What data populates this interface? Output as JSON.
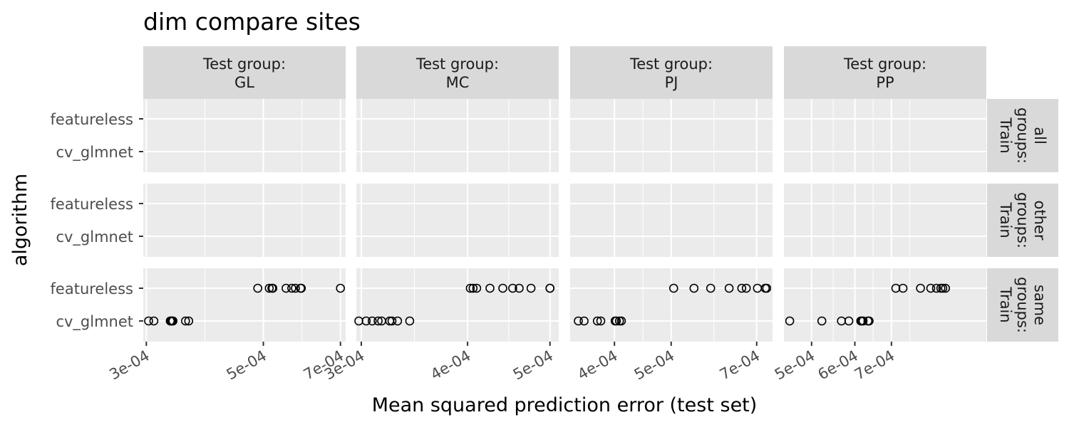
{
  "chart_data": {
    "type": "scatter",
    "title": "dim compare sites",
    "xlabel": "Mean squared prediction error (test set)",
    "ylabel": "algorithm",
    "x_scale": "log10",
    "y_categories": [
      "cv_glmnet",
      "featureless"
    ],
    "col_facets": [
      {
        "label": "Test group:\nGL",
        "xlim": [
          0.000296,
          0.000716
        ],
        "ticks": [
          0.0003,
          0.0005,
          0.0007
        ],
        "tick_labels": [
          "3e-04",
          "5e-04",
          "7e-04"
        ]
      },
      {
        "label": "Test group:\nMC",
        "xlim": [
          0.000296,
          0.000512
        ],
        "ticks": [
          0.0003,
          0.0004,
          0.0005
        ],
        "tick_labels": [
          "3e-04",
          "4e-04",
          "5e-04"
        ]
      },
      {
        "label": "Test group:\nPJ",
        "xlim": [
          0.000336,
          0.000745
        ],
        "ticks": [
          0.0004,
          0.0005,
          0.0007
        ],
        "tick_labels": [
          "4e-04",
          "5e-04",
          "7e-04"
        ]
      },
      {
        "label": "Test group:\nPP",
        "xlim": [
          0.000445,
          0.001044
        ],
        "ticks": [
          0.0005,
          0.0006,
          0.0007
        ],
        "tick_labels": [
          "5e-04",
          "6e-04",
          "7e-04"
        ]
      }
    ],
    "row_facets": [
      {
        "label": "Train\ngroups:\nall"
      },
      {
        "label": "Train\ngroups:\nother"
      },
      {
        "label": "Train\ngroups:\nsame"
      }
    ],
    "points": [
      {
        "col": 0,
        "row": 2,
        "algorithm": "featureless",
        "x": [
          0.000488,
          0.000513,
          0.000519,
          0.000521,
          0.000552,
          0.000566,
          0.000575,
          0.000588,
          0.00059,
          0.0007
        ]
      },
      {
        "col": 0,
        "row": 2,
        "algorithm": "cv_glmnet",
        "x": [
          0.000303,
          0.00031,
          0.000333,
          0.000334,
          0.000335,
          0.000336,
          0.000337,
          0.000356,
          0.000361
        ]
      },
      {
        "col": 1,
        "row": 2,
        "algorithm": "featureless",
        "x": [
          0.000403,
          0.000406,
          0.00041,
          0.000425,
          0.00044,
          0.000452,
          0.00046,
          0.000475,
          0.0005,
          0.0005
        ]
      },
      {
        "col": 1,
        "row": 2,
        "algorithm": "cv_glmnet",
        "x": [
          0.000298,
          0.000304,
          0.000309,
          0.000314,
          0.000317,
          0.000324,
          0.000326,
          0.000331,
          0.000342
        ]
      },
      {
        "col": 2,
        "row": 2,
        "algorithm": "featureless",
        "x": [
          0.000505,
          0.000547,
          0.000584,
          0.000628,
          0.00066,
          0.000672,
          0.000702,
          0.000724,
          0.000728
        ]
      },
      {
        "col": 2,
        "row": 2,
        "algorithm": "cv_glmnet",
        "x": [
          0.000347,
          0.000355,
          0.000374,
          0.000379,
          0.000401,
          0.000403,
          0.000408,
          0.000411
        ]
      },
      {
        "col": 3,
        "row": 2,
        "algorithm": "featureless",
        "x": [
          0.000713,
          0.000735,
          0.000791,
          0.000826,
          0.000846,
          0.000862,
          0.000869,
          0.000879
        ]
      },
      {
        "col": 3,
        "row": 2,
        "algorithm": "cv_glmnet",
        "x": [
          0.000456,
          0.000522,
          0.000567,
          0.000585,
          0.000615,
          0.000618,
          0.000621,
          0.000634,
          0.000637
        ]
      }
    ]
  }
}
